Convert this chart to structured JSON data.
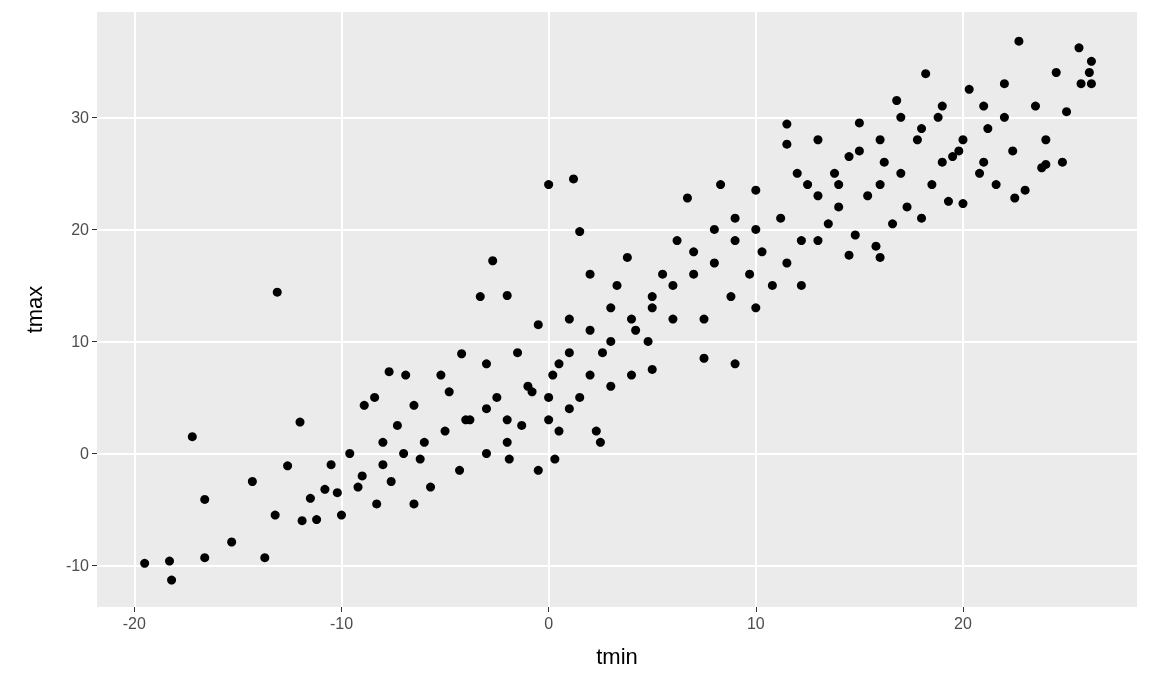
{
  "chart_data": {
    "type": "scatter",
    "xlabel": "tmin",
    "ylabel": "tmax",
    "xlim": [
      -21.8,
      28.4
    ],
    "ylim": [
      -13.7,
      39.4
    ],
    "xticks": [
      -20,
      -10,
      0,
      10,
      20
    ],
    "yticks": [
      -10,
      0,
      10,
      20,
      30
    ],
    "grid": true,
    "marker": "circle",
    "series": [
      {
        "color": "#000000",
        "x": [
          -19.5,
          -18.3,
          -18.2,
          -16.6,
          -17.2,
          -16.6,
          -15.3,
          -14.3,
          -13.7,
          -13.1,
          -13.2,
          -12.6,
          -12.0,
          -11.9,
          -11.5,
          -11.2,
          -10.8,
          -10.5,
          -10.0,
          -9.6,
          -9.2,
          -8.9,
          -8.4,
          -8.0,
          -7.6,
          -7.3,
          -7.7,
          -6.9,
          -6.5,
          -6.2,
          -5.7,
          -5.2,
          -4.8,
          -4.3,
          -4.2,
          -3.8,
          -3.3,
          -3.0,
          -2.7,
          -2.0,
          -2.5,
          -1.9,
          -1.5,
          -1.3,
          -0.8,
          -0.5,
          0.0,
          0.2,
          0.5,
          1.2,
          1.0,
          1.5,
          1.5,
          2.0,
          2.3,
          2.6,
          3.0,
          3.3,
          3.8,
          4.0,
          4.2,
          4.8,
          5.0,
          5.0,
          5.5,
          6.0,
          6.2,
          6.7,
          7.0,
          7.5,
          8.0,
          8.3,
          8.8,
          9.0,
          9.7,
          10.0,
          10.3,
          10.8,
          11.2,
          11.5,
          11.5,
          11.5,
          12.2,
          12.2,
          12.5,
          13.0,
          13.5,
          13.8,
          14.0,
          14.5,
          14.8,
          15.0,
          15.4,
          15.8,
          16.2,
          16.6,
          16.8,
          17.3,
          17.8,
          18.2,
          18.5,
          18.8,
          19.3,
          19.8,
          20.0,
          20.3,
          20.8,
          21.2,
          21.6,
          22.0,
          22.4,
          22.7,
          23.0,
          23.5,
          24.0,
          24.5,
          25.0,
          25.6,
          25.7,
          26.2,
          26.2,
          26.1,
          24.8,
          23.8,
          -6,
          -5,
          -4,
          -3,
          -2,
          -1,
          0,
          0.5,
          1,
          2,
          3,
          4,
          5,
          6,
          7,
          8,
          9,
          10,
          -8,
          -9,
          -7,
          -3,
          -2,
          0,
          1,
          2,
          3,
          12,
          13,
          14,
          15,
          16,
          17,
          18,
          19,
          20,
          21,
          22,
          21,
          19,
          17,
          16,
          18,
          -0.5,
          0.3,
          -6.5,
          -8.3,
          -10.2,
          2.5,
          7.5,
          9,
          10,
          13,
          14.5,
          16,
          19.5,
          22.5,
          24
        ],
        "values": [
          -9.8,
          -9.6,
          -11.3,
          -9.3,
          1.5,
          -4.1,
          -7.9,
          -2.5,
          -9.3,
          14.4,
          -5.5,
          -1.1,
          2.8,
          -6.0,
          -4.0,
          -5.9,
          -3.2,
          -1.0,
          -5.5,
          0.0,
          -3.0,
          4.3,
          5.0,
          1.0,
          -2.5,
          2.5,
          7.3,
          7.0,
          4.3,
          -0.5,
          -3.0,
          7.0,
          5.5,
          -1.5,
          8.9,
          3.0,
          14.0,
          0.0,
          17.2,
          14.1,
          5.0,
          -0.5,
          9.0,
          2.5,
          5.5,
          11.5,
          24.0,
          7.0,
          2.0,
          24.5,
          12.0,
          19.8,
          5.0,
          16.0,
          2.0,
          9.0,
          13.0,
          15.0,
          17.5,
          7.0,
          11.0,
          10.0,
          13.0,
          7.5,
          16.0,
          12.0,
          19.0,
          22.8,
          16.0,
          12.0,
          20.0,
          24.0,
          14.0,
          21.0,
          16.0,
          23.5,
          18.0,
          15.0,
          21.0,
          17.0,
          27.6,
          29.4,
          19.0,
          15.0,
          24.0,
          28.0,
          20.5,
          25.0,
          22.0,
          26.5,
          19.5,
          29.5,
          23.0,
          18.5,
          26.0,
          20.5,
          31.5,
          22.0,
          28.0,
          33.9,
          24.0,
          30.0,
          22.5,
          27.0,
          22.3,
          32.5,
          25.0,
          29.0,
          24.0,
          33.0,
          27.0,
          36.8,
          23.5,
          31.0,
          28.0,
          34.0,
          30.5,
          36.2,
          33.0,
          33.0,
          35.0,
          34.0,
          26.0,
          25.5,
          1,
          2,
          3,
          4,
          3,
          6,
          5,
          8,
          9,
          7,
          10,
          12,
          14,
          15,
          18,
          17,
          19,
          20,
          -1,
          -2,
          0,
          8,
          1,
          3,
          4,
          11,
          6,
          25,
          23,
          24,
          27,
          28,
          25,
          29,
          26,
          28,
          31,
          30,
          26,
          31,
          30,
          24,
          21,
          -1.5,
          -0.5,
          -4.5,
          -4.5,
          -3.5,
          1,
          8.5,
          8,
          13,
          19,
          17.7,
          17.5,
          26.5,
          22.8,
          25.8
        ]
      }
    ]
  }
}
